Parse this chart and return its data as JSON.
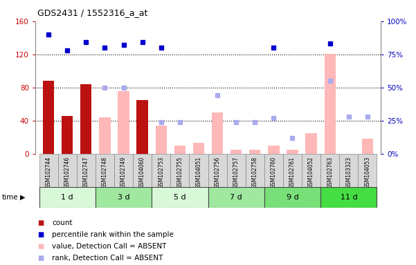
{
  "title": "GDS2431 / 1552316_a_at",
  "samples": [
    "GSM102744",
    "GSM102746",
    "GSM102747",
    "GSM102748",
    "GSM102749",
    "GSM104060",
    "GSM102753",
    "GSM102755",
    "GSM104051",
    "GSM102756",
    "GSM102757",
    "GSM102758",
    "GSM102760",
    "GSM102761",
    "GSM104052",
    "GSM102763",
    "GSM103323",
    "GSM104053"
  ],
  "time_groups": [
    {
      "label": "1 d",
      "start": 0,
      "end": 3,
      "color": "#d8f8d8"
    },
    {
      "label": "3 d",
      "start": 3,
      "end": 6,
      "color": "#a0e8a0"
    },
    {
      "label": "5 d",
      "start": 6,
      "end": 9,
      "color": "#d8f8d8"
    },
    {
      "label": "7 d",
      "start": 9,
      "end": 12,
      "color": "#a0e8a0"
    },
    {
      "label": "9 d",
      "start": 12,
      "end": 15,
      "color": "#78e078"
    },
    {
      "label": "11 d",
      "start": 15,
      "end": 18,
      "color": "#44dd44"
    }
  ],
  "count_values": [
    88,
    46,
    84,
    null,
    null,
    65,
    null,
    null,
    null,
    null,
    null,
    null,
    null,
    null,
    null,
    null,
    null,
    null
  ],
  "percentile_values": [
    90,
    78,
    84,
    80,
    82,
    84,
    80,
    null,
    null,
    null,
    null,
    null,
    80,
    null,
    null,
    83,
    null,
    null
  ],
  "absent_value_bars": [
    null,
    null,
    null,
    44,
    76,
    null,
    34,
    10,
    13,
    50,
    5,
    5,
    10,
    5,
    25,
    121,
    null,
    18
  ],
  "absent_rank_dots": [
    null,
    null,
    null,
    50,
    50,
    null,
    24,
    24,
    null,
    44,
    24,
    24,
    27,
    12,
    null,
    55,
    28,
    28
  ],
  "ylim_left": [
    0,
    160
  ],
  "ylim_right": [
    0,
    100
  ],
  "yticks_left": [
    0,
    40,
    80,
    120,
    160
  ],
  "ytick_labels_left": [
    "0",
    "40",
    "80",
    "120",
    "160"
  ],
  "yticks_right": [
    0,
    25,
    50,
    75,
    100
  ],
  "ytick_labels_right": [
    "0%",
    "25%",
    "50%",
    "75%",
    "100%"
  ],
  "bar_color_present": "#bb1111",
  "bar_color_absent_val": "#ffb8b8",
  "dot_color_present": "#0000cc",
  "dot_color_absent": "#aaaaee",
  "bg_color": "#ffffff",
  "sample_row_color": "#d8d8d8",
  "legend_items": [
    {
      "label": "count",
      "color": "#bb1111"
    },
    {
      "label": "percentile rank within the sample",
      "color": "#0000cc"
    },
    {
      "label": "value, Detection Call = ABSENT",
      "color": "#ffb8b8"
    },
    {
      "label": "rank, Detection Call = ABSENT",
      "color": "#aaaaee"
    }
  ]
}
